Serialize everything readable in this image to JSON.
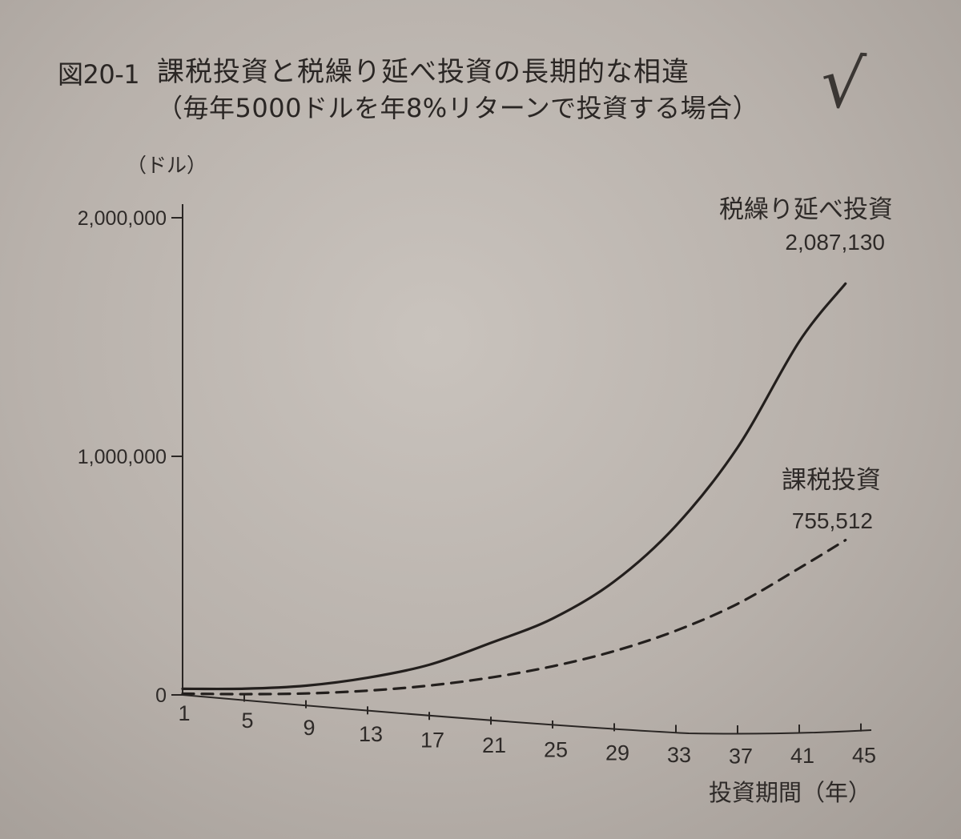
{
  "figure": {
    "number": "図20-1",
    "title": "課税投資と税繰り延べ投資の長期的な相違",
    "subtitle": "（毎年5000ドルを年8%リターンで投資する場合）",
    "annotation_mark": "√"
  },
  "chart_data": {
    "type": "line",
    "title": "課税投資と税繰り延べ投資の長期的な相違",
    "subtitle": "（毎年5000ドルを年8%リターンで投資する場合）",
    "ylabel": "（ドル）",
    "xlabel": "投資期間（年）",
    "ylim": [
      0,
      2100000
    ],
    "xlim": [
      1,
      45
    ],
    "y_ticks": [
      0,
      1000000,
      2000000
    ],
    "y_tick_labels": [
      "0",
      "1,000,000",
      "2,000,000"
    ],
    "x_ticks": [
      1,
      5,
      9,
      13,
      17,
      21,
      25,
      29,
      33,
      37,
      41,
      45
    ],
    "x_tick_labels": [
      "1",
      "5",
      "9",
      "13",
      "17",
      "21",
      "25",
      "29",
      "33",
      "37",
      "41",
      "45"
    ],
    "grid": false,
    "legend": "inline-labels",
    "series": [
      {
        "name": "税繰り延べ投資",
        "final_value_label": "2,087,130",
        "line_style": "solid",
        "color": "#231f1d",
        "x": [
          1,
          5,
          9,
          13,
          17,
          21,
          25,
          29,
          33,
          37,
          41,
          44
        ],
        "values": [
          5400,
          31680,
          67428,
          120000,
          189000,
          290000,
          395000,
          547000,
          770000,
          1080000,
          1500000,
          1720000
        ]
      },
      {
        "name": "課税投資",
        "final_value_label": "755,512",
        "line_style": "dashed",
        "color": "#231f1d",
        "x": [
          1,
          5,
          9,
          13,
          17,
          21,
          25,
          29,
          33,
          37,
          41,
          44
        ],
        "values": [
          5300,
          29000,
          55000,
          86000,
          122000,
          165000,
          215000,
          275000,
          350000,
          445000,
          570000,
          665000
        ]
      }
    ]
  }
}
